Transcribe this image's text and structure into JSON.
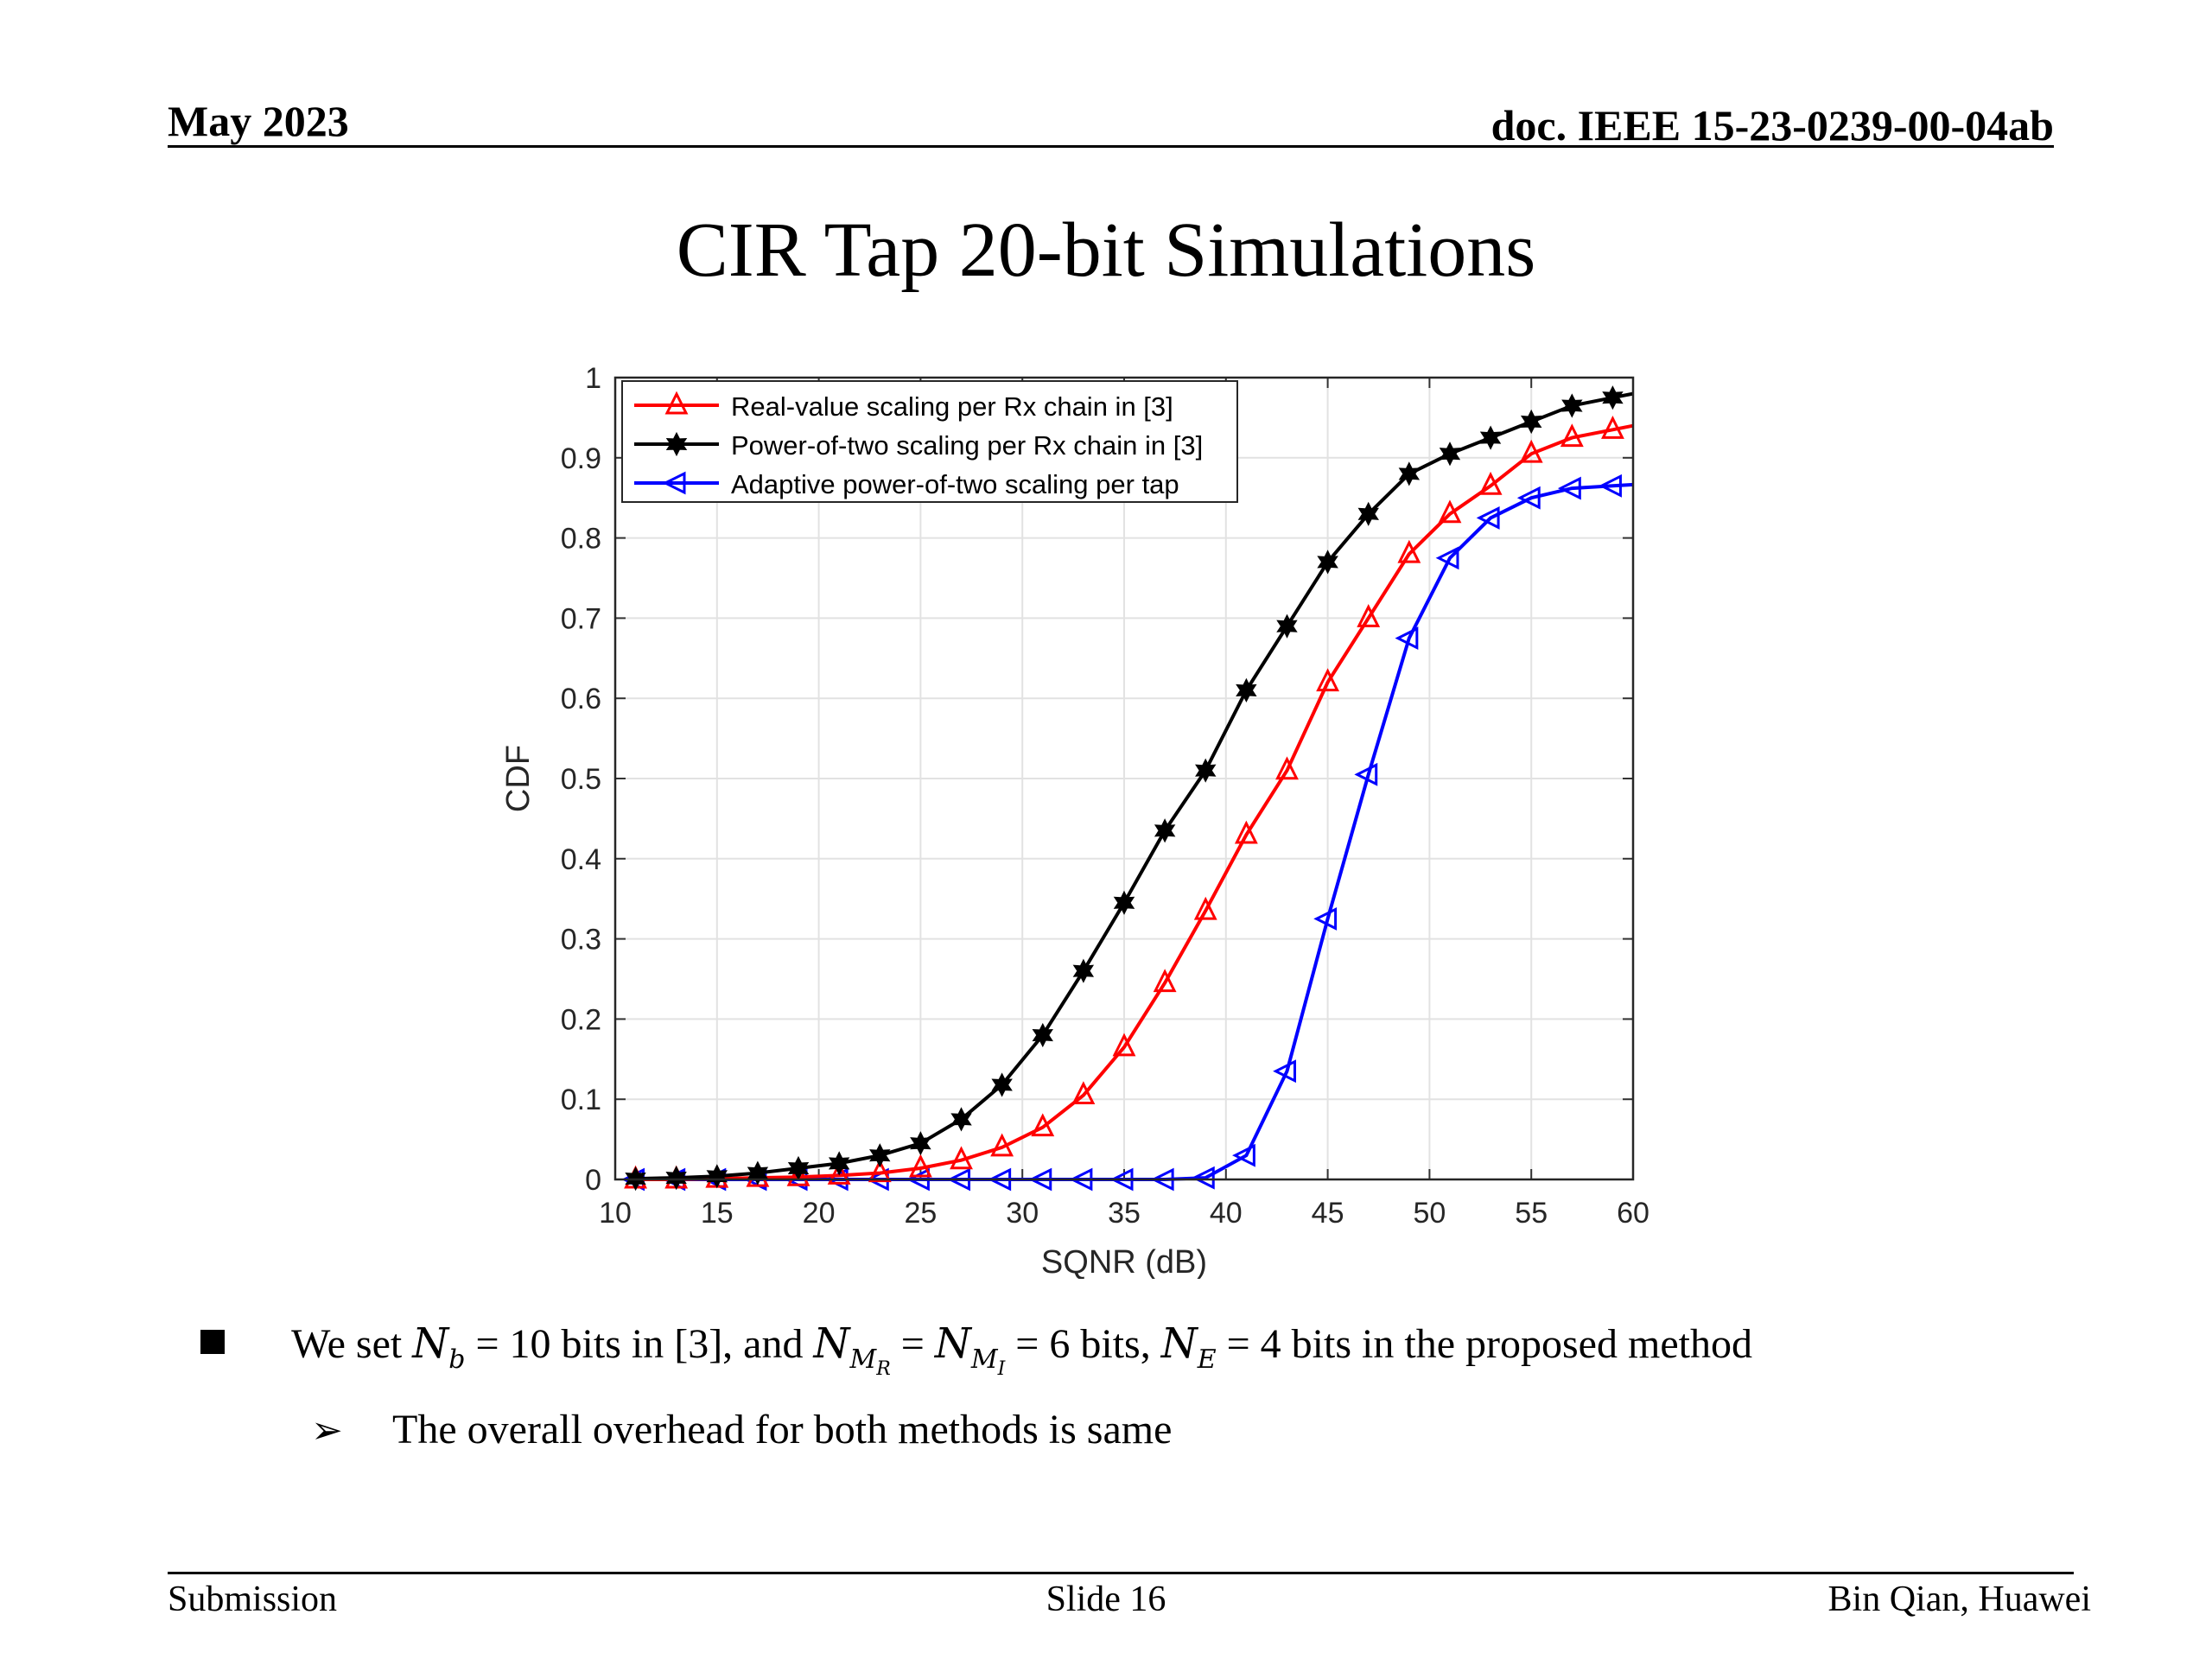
{
  "header": {
    "date": "May 2023",
    "doc_id": "doc. IEEE 15-23-0239-00-04ab"
  },
  "slide_title": "CIR Tap 20-bit Simulations",
  "chart_data": {
    "type": "line",
    "title": "",
    "xlabel": "SQNR (dB)",
    "ylabel": "CDF",
    "xlim": [
      10,
      60
    ],
    "ylim": [
      0,
      1
    ],
    "xticks": [
      10,
      15,
      20,
      25,
      30,
      35,
      40,
      45,
      50,
      55,
      60
    ],
    "yticks": [
      0,
      0.1,
      0.2,
      0.3,
      0.4,
      0.5,
      0.6,
      0.7,
      0.8,
      0.9,
      1
    ],
    "ytick_labels": [
      "0",
      "0.1",
      "0.2",
      "0.3",
      "0.4",
      "0.5",
      "0.6",
      "0.7",
      "0.8",
      "0.9",
      "1"
    ],
    "grid": true,
    "legend_position": "top-left",
    "x": [
      11,
      13,
      15,
      17,
      19,
      21,
      23,
      25,
      27,
      29,
      31,
      33,
      35,
      37,
      39,
      41,
      43,
      45,
      47,
      49,
      51,
      53,
      55,
      57,
      59
    ],
    "series": [
      {
        "name": "Real-value scaling per Rx chain in [3]",
        "color": "#ff0000",
        "marker": "triangle-up",
        "values": [
          0,
          0,
          0.001,
          0.002,
          0.003,
          0.005,
          0.008,
          0.014,
          0.024,
          0.04,
          0.065,
          0.105,
          0.165,
          0.245,
          0.335,
          0.43,
          0.51,
          0.62,
          0.7,
          0.78,
          0.83,
          0.865,
          0.905,
          0.925,
          0.935
        ]
      },
      {
        "name": "Power-of-two scaling per Rx chain in [3]",
        "color": "#000000",
        "marker": "hexagram",
        "values": [
          0.001,
          0.002,
          0.004,
          0.008,
          0.014,
          0.02,
          0.03,
          0.045,
          0.075,
          0.118,
          0.18,
          0.26,
          0.345,
          0.435,
          0.51,
          0.61,
          0.69,
          0.77,
          0.83,
          0.88,
          0.905,
          0.925,
          0.945,
          0.965,
          0.975
        ]
      },
      {
        "name": "Adaptive power-of-two scaling per tap",
        "color": "#0000ff",
        "marker": "triangle-left",
        "values": [
          0,
          0,
          0,
          0,
          0,
          0,
          0,
          0,
          0,
          0,
          0,
          0,
          0,
          0,
          0.002,
          0.03,
          0.135,
          0.325,
          0.505,
          0.675,
          0.775,
          0.825,
          0.85,
          0.862,
          0.865
        ]
      }
    ]
  },
  "bullets": {
    "main_we_set": "We set",
    "main_nb": "N",
    "main_nb_sub": "b",
    "main_eq1": "= 10 bits in [3], and",
    "main_nm": "N",
    "main_nm_sub": "M",
    "main_nm_subsub": "R",
    "main_eq2": "=",
    "main_ni": "N",
    "main_ni_sub": "M",
    "main_ni_subsub": "I",
    "main_eq3": "= 6 bits,",
    "main_ne": "N",
    "main_ne_sub": "E",
    "main_eq4": "= 4 bits in the proposed method",
    "sub": "The overall overhead for both methods is same"
  },
  "footer": {
    "left": "Submission",
    "center": "Slide 16",
    "right": "Bin Qian, Huawei"
  }
}
